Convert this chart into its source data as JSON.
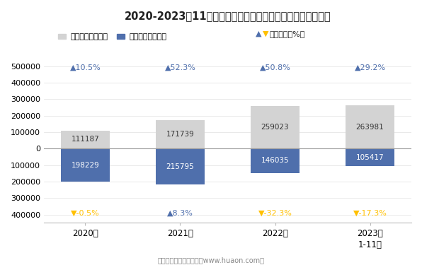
{
  "title": "2020-2023年11月绵阳市商品收发货人所在地进、出口额统计",
  "years": [
    "2020年",
    "2021年",
    "2022年",
    "2023年\n1-11月"
  ],
  "export_values": [
    111187,
    171739,
    259023,
    263981
  ],
  "import_values": [
    -198229,
    -215795,
    -146035,
    -105417
  ],
  "import_labels": [
    198229,
    215795,
    146035,
    105417
  ],
  "export_growth": [
    10.5,
    52.3,
    50.8,
    29.2
  ],
  "import_growth": [
    -0.5,
    8.3,
    -32.3,
    -17.3
  ],
  "export_growth_positive": [
    true,
    true,
    true,
    true
  ],
  "import_growth_positive": [
    false,
    true,
    false,
    false
  ],
  "export_color": "#d3d3d3",
  "import_color": "#4f6fac",
  "growth_up_color": "#4f6fac",
  "growth_down_color": "#ffc000",
  "bar_width": 0.52,
  "ylim": [
    -450000,
    560000
  ],
  "yticks": [
    -400000,
    -300000,
    -200000,
    -100000,
    0,
    100000,
    200000,
    300000,
    400000,
    500000
  ],
  "footnote": "制图：华经产业研究院（www.huaon.com）",
  "legend_export": "出口额（万美元）",
  "legend_import": "进口额（万美元）",
  "legend_growth": "同比增长（%）"
}
